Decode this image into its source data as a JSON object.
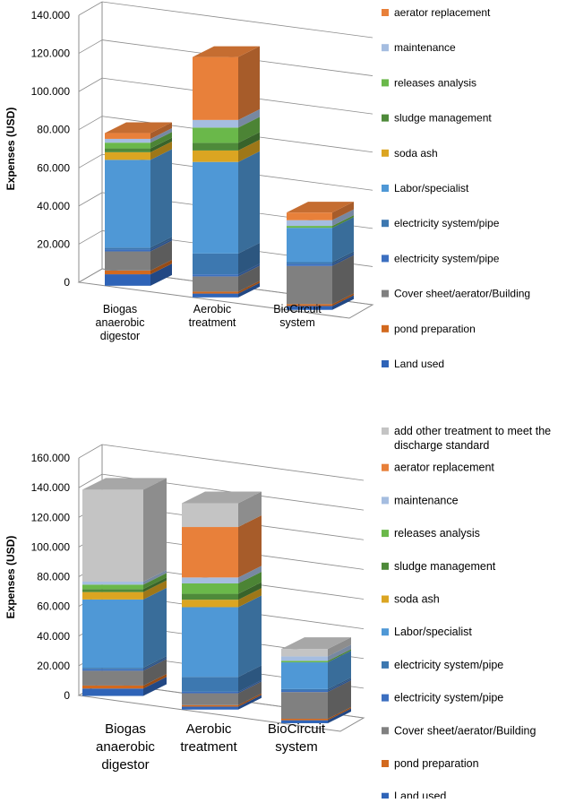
{
  "colors": {
    "Land used": "#2f64b8",
    "pond preparation": "#d2691e",
    "Cover sheet/aerator/Building": "#808080",
    "electricity system/pipe (1)": "#3c6fc0",
    "electricity system/pipe (2)": "#3d78b0",
    "Labor/specialist": "#4f98d6",
    "soda ash": "#dba522",
    "sludge management": "#4e8a3a",
    "releases analysis": "#6ab84a",
    "maintenance": "#a5bde0",
    "aerator replacement": "#e8803a",
    "add other treatment to meet the discharge standard": "#c4c4c4"
  },
  "chart_data": [
    {
      "type": "bar",
      "stacked": true,
      "ylabel": "Expenses (USD)",
      "ylim": [
        0,
        140000
      ],
      "yticks": [
        "0",
        "20.000",
        "40.000",
        "60.000",
        "80.000",
        "100.000",
        "120.000",
        "140.000"
      ],
      "categories": [
        [
          "Biogas",
          "anaerobic",
          "digestor"
        ],
        [
          "Aerobic",
          "treatment"
        ],
        [
          "BioCircuit",
          "system"
        ]
      ],
      "legend_position": "right",
      "series": [
        {
          "name": "Land used",
          "key": "Land used",
          "values": [
            6000,
            2000,
            2000
          ]
        },
        {
          "name": "pond preparation",
          "key": "pond preparation",
          "values": [
            2000,
            1000,
            1000
          ]
        },
        {
          "name": "Cover sheet/aerator/Building",
          "key": "Cover sheet/aerator/Building",
          "values": [
            10000,
            8000,
            20000
          ]
        },
        {
          "name": "electricity system/pipe",
          "key": "electricity system/pipe (1)",
          "values": [
            1000,
            1000,
            1000
          ]
        },
        {
          "name": "electricity system/pipe",
          "key": "electricity system/pipe (2)",
          "values": [
            1000,
            11000,
            1000
          ]
        },
        {
          "name": "Labor/specialist",
          "key": "Labor/specialist",
          "values": [
            46000,
            48000,
            18000
          ]
        },
        {
          "name": "soda ash",
          "key": "soda ash",
          "values": [
            4000,
            6000,
            0
          ]
        },
        {
          "name": "sludge management",
          "key": "sludge management",
          "values": [
            2000,
            4000,
            0
          ]
        },
        {
          "name": "releases analysis",
          "key": "releases analysis",
          "values": [
            3000,
            8000,
            1000
          ]
        },
        {
          "name": "maintenance",
          "key": "maintenance",
          "values": [
            2000,
            4000,
            3000
          ]
        },
        {
          "name": "aerator replacement",
          "key": "aerator replacement",
          "values": [
            3000,
            33000,
            4000
          ]
        }
      ]
    },
    {
      "type": "bar",
      "stacked": true,
      "ylabel": "Expenses (USD)",
      "ylim": [
        0,
        160000
      ],
      "yticks": [
        "0",
        "20.000",
        "40.000",
        "60.000",
        "80.000",
        "100.000",
        "120.000",
        "140.000",
        "160.000"
      ],
      "categories": [
        [
          "Biogas",
          "anaerobic",
          "digestor"
        ],
        [
          "Aerobic",
          "treatment"
        ],
        [
          "BioCircuit",
          "system"
        ]
      ],
      "legend_position": "right",
      "series": [
        {
          "name": "Land used",
          "key": "Land used",
          "values": [
            5000,
            2000,
            2000
          ]
        },
        {
          "name": "pond preparation",
          "key": "pond preparation",
          "values": [
            2000,
            1000,
            1000
          ]
        },
        {
          "name": "Cover sheet/aerator/Building",
          "key": "Cover sheet/aerator/Building",
          "values": [
            10000,
            8000,
            18000
          ]
        },
        {
          "name": "electricity system/pipe",
          "key": "electricity system/pipe (1)",
          "values": [
            1000,
            1000,
            1000
          ]
        },
        {
          "name": "electricity system/pipe",
          "key": "electricity system/pipe (2)",
          "values": [
            1000,
            10000,
            1000
          ]
        },
        {
          "name": "Labor/specialist",
          "key": "Labor/specialist",
          "values": [
            46000,
            47000,
            18000
          ]
        },
        {
          "name": "soda ash",
          "key": "soda ash",
          "values": [
            5000,
            5000,
            0
          ]
        },
        {
          "name": "sludge management",
          "key": "sludge management",
          "values": [
            2000,
            4000,
            0
          ]
        },
        {
          "name": "releases analysis",
          "key": "releases analysis",
          "values": [
            3000,
            7000,
            1000
          ]
        },
        {
          "name": "maintenance",
          "key": "maintenance",
          "values": [
            2000,
            4000,
            3000
          ]
        },
        {
          "name": "aerator replacement",
          "key": "aerator replacement",
          "values": [
            0,
            34000,
            0
          ]
        },
        {
          "name": "add other treatment to meet the discharge standard",
          "key": "add other treatment to meet the discharge standard",
          "values": [
            62000,
            16000,
            5000
          ]
        }
      ]
    }
  ]
}
